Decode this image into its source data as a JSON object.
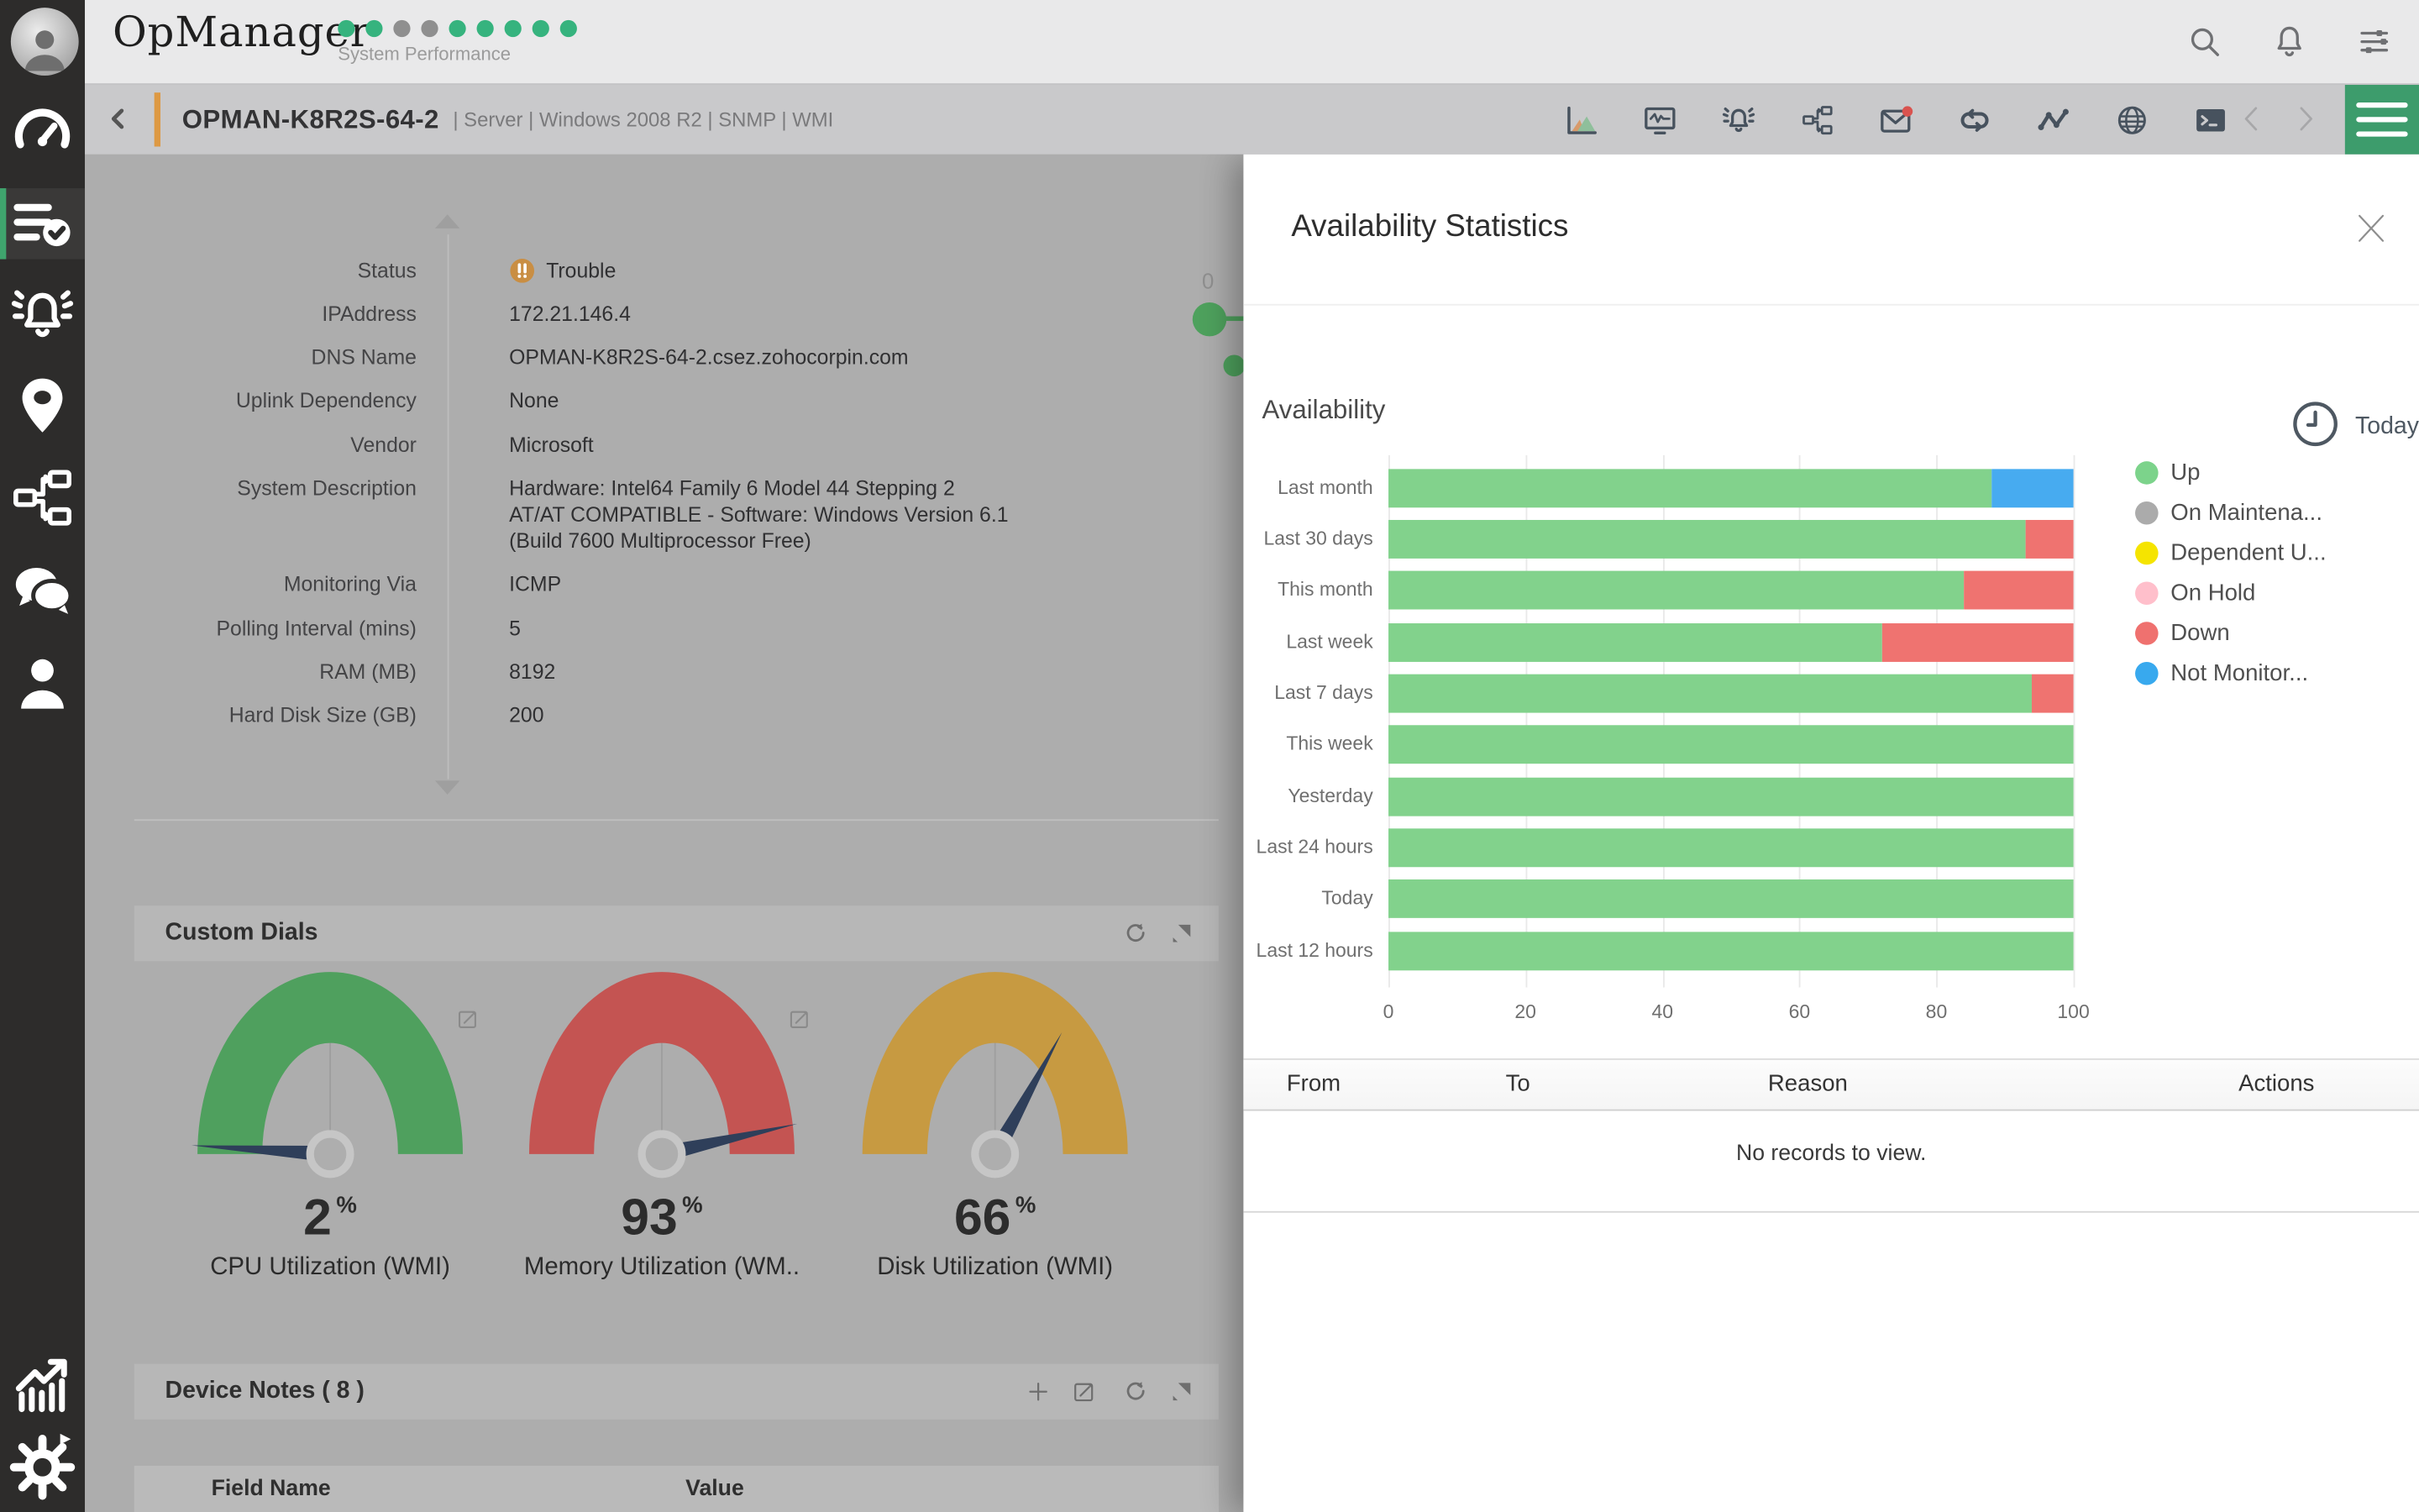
{
  "header": {
    "logo": "OpManager",
    "tagline": "System Performance",
    "dots": [
      "green",
      "green",
      "gray",
      "gray",
      "green",
      "green",
      "green",
      "green",
      "green"
    ],
    "dot_colors": {
      "green": "#36B37E",
      "gray": "#8F8F8F"
    },
    "icons": [
      "search-icon",
      "bell-icon",
      "sliders-icon"
    ]
  },
  "sidebar": {
    "items": [
      {
        "icon": "gauge",
        "name": "dashboard",
        "active": false
      },
      {
        "icon": "list-check",
        "name": "inventory",
        "active": true
      },
      {
        "icon": "alarm",
        "name": "alarms",
        "active": false
      },
      {
        "icon": "pin",
        "name": "maps",
        "active": false
      },
      {
        "icon": "topology",
        "name": "topology",
        "active": false
      },
      {
        "icon": "chat",
        "name": "chat",
        "active": false
      },
      {
        "icon": "person",
        "name": "users",
        "active": false
      },
      {
        "icon": "chart-growth",
        "name": "reports",
        "active": false
      },
      {
        "icon": "gear",
        "name": "settings",
        "active": false
      }
    ],
    "accent_green": "#3FA46D"
  },
  "device_bar": {
    "name": "OPMAN-K8R2S-64-2",
    "meta": "| Server | Windows 2008 R2  | SNMP  | WMI",
    "tools": [
      "area-chart",
      "monitor",
      "alarm",
      "workflow",
      "mail",
      "loop",
      "zigzag",
      "globe",
      "terminal"
    ],
    "mail_dot_color": "#D9534F",
    "accent_orange": "#DD9943",
    "menu_button_color": "#3D9C6C"
  },
  "device_info": {
    "rows": [
      {
        "label": "Status",
        "value": "Trouble",
        "badge": "trouble",
        "badge_color": "#C98E43"
      },
      {
        "label": "IPAddress",
        "value": "172.21.146.4"
      },
      {
        "label": "DNS Name",
        "value": "OPMAN-K8R2S-64-2.csez.zohocorpin.com"
      },
      {
        "label": "Uplink Dependency",
        "value": "None"
      },
      {
        "label": "Vendor",
        "value": "Microsoft"
      },
      {
        "label": "System Description",
        "value": "Hardware: Intel64 Family 6 Model 44 Stepping 2\nAT/AT COMPATIBLE - Software: Windows Version 6.1\n(Build 7600 Multiprocessor Free)"
      },
      {
        "label": "Monitoring Via",
        "value": "ICMP"
      },
      {
        "label": "Polling Interval (mins)",
        "value": "5"
      },
      {
        "label": "RAM (MB)",
        "value": "8192"
      },
      {
        "label": "Hard Disk Size (GB)",
        "value": "200"
      }
    ]
  },
  "occluded_chart": {
    "tick_label": "0",
    "dot_color": "#4EA15D"
  },
  "custom_dials": {
    "title": "Custom Dials",
    "gauges": [
      {
        "value": 2,
        "unit": "%",
        "label": "CPU Utilization (WMI)",
        "color": "#4FA05E",
        "editable": true
      },
      {
        "value": 93,
        "unit": "%",
        "label": "Memory Utilization (WM..",
        "color": "#C45452",
        "editable": true
      },
      {
        "value": 66,
        "unit": "%",
        "label": "Disk Utilization (WMI)",
        "color": "#C79A41",
        "editable": false
      }
    ],
    "needle_color": "#2F3F5A"
  },
  "device_notes": {
    "title": "Device Notes ( 8 )",
    "columns": [
      "Field Name",
      "Value"
    ]
  },
  "panel": {
    "title": "Availability Statistics",
    "section_title": "Availability",
    "period": "Today",
    "table": {
      "headers": [
        "From",
        "To",
        "Reason",
        "Actions"
      ],
      "empty_text": "No records to view."
    }
  },
  "chart_data": {
    "type": "bar",
    "orientation": "horizontal",
    "stacked": true,
    "categories": [
      "Last month",
      "Last 30 days",
      "This month",
      "Last week",
      "Last 7 days",
      "This week",
      "Yesterday",
      "Last 24 hours",
      "Today",
      "Last 12 hours"
    ],
    "series": [
      {
        "name": "Up",
        "color": "#82D28C",
        "values": [
          88,
          93,
          84,
          72,
          94,
          100,
          100,
          100,
          100,
          100
        ]
      },
      {
        "name": "Down",
        "color": "#EF7370",
        "values": [
          0,
          7,
          16,
          28,
          6,
          0,
          0,
          0,
          0,
          0
        ]
      },
      {
        "name": "Not Monitored",
        "color": "#47ABF0",
        "values": [
          12,
          0,
          0,
          0,
          0,
          0,
          0,
          0,
          0,
          0
        ]
      }
    ],
    "xlim": [
      0,
      100
    ],
    "xticks": [
      0,
      20,
      40,
      60,
      80,
      100
    ],
    "grid": true,
    "legend_position": "right",
    "legend": [
      {
        "label": "Up",
        "color": "#7CD38B"
      },
      {
        "label": "On Maintena...",
        "color": "#ABABAB"
      },
      {
        "label": "Dependent U...",
        "color": "#F5E400"
      },
      {
        "label": "On Hold",
        "color": "#FFBFCB"
      },
      {
        "label": "Down",
        "color": "#EF716F"
      },
      {
        "label": "Not Monitor...",
        "color": "#38A9EE"
      }
    ]
  }
}
